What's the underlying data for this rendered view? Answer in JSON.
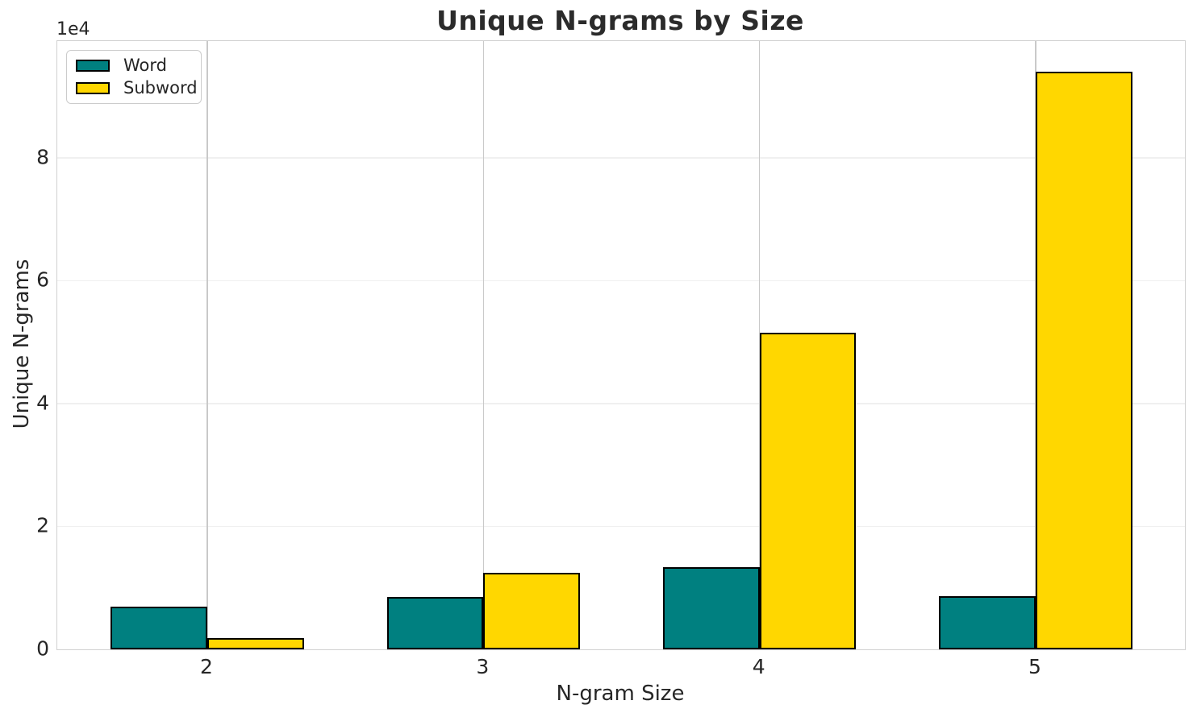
{
  "chart_data": {
    "type": "bar",
    "title": "Unique N-grams by Size",
    "xlabel": "N-gram Size",
    "ylabel": "Unique N-grams",
    "y_offset_text": "1e4",
    "categories": [
      "2",
      "3",
      "4",
      "5"
    ],
    "series": [
      {
        "name": "Word",
        "color": "#008080",
        "values": [
          7000,
          8500,
          13400,
          8600
        ]
      },
      {
        "name": "Subword",
        "color": "#FFD700",
        "values": [
          1800,
          12500,
          51500,
          94000
        ]
      }
    ],
    "y_ticks": [
      {
        "value": 0,
        "label": "0"
      },
      {
        "value": 20000,
        "label": "2"
      },
      {
        "value": 40000,
        "label": "4"
      },
      {
        "value": 60000,
        "label": "6"
      },
      {
        "value": 80000,
        "label": "8"
      }
    ],
    "layout": {
      "xlim": [
        -0.5433,
        3.5405
      ],
      "ylim": [
        0,
        99000
      ],
      "bar_width": 0.35,
      "bar_edge_color": "#000000",
      "grid": true,
      "grid_color_horizontal": "#f0f0f0",
      "grid_color_vertical": "#c9c9c9",
      "spine_color": "#d0d0d0",
      "text_color": "#262626",
      "background": "#ffffff",
      "legend_position": "upper left"
    }
  }
}
